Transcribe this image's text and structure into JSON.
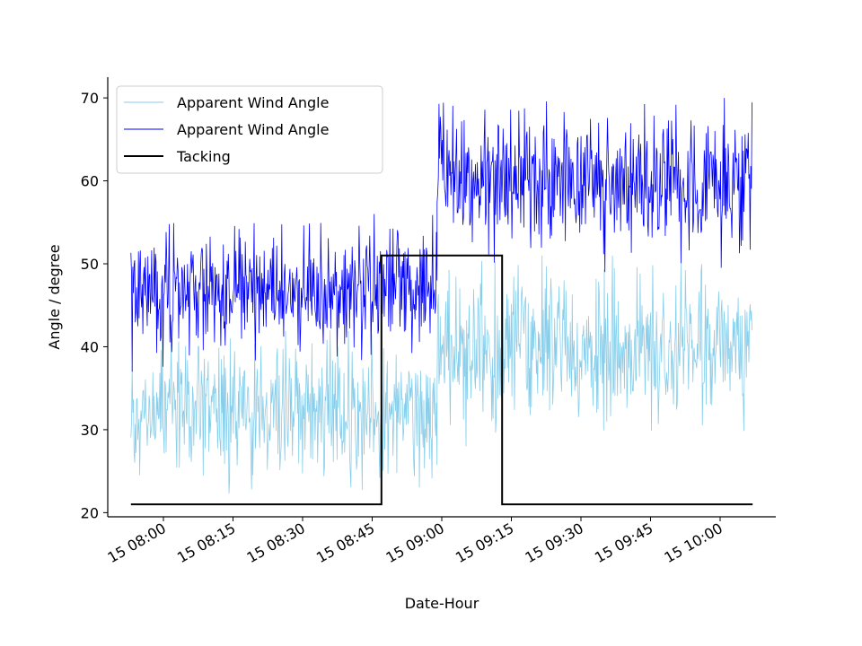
{
  "chart_data": {
    "type": "line",
    "title": "",
    "xlabel": "Date-Hour",
    "ylabel": "Angle / degree",
    "xlim": [
      "15 07:48",
      "10:12"
    ],
    "ylim": [
      19.5,
      72.5
    ],
    "x_ticks": [
      "15 08:00",
      "15 08:15",
      "15 08:30",
      "15 08:45",
      "15 09:00",
      "15 09:15",
      "15 09:30",
      "15 09:45",
      "15 10:00"
    ],
    "y_ticks": [
      20,
      30,
      40,
      50,
      60,
      70
    ],
    "grid": false,
    "legend": {
      "placement": "upper-left",
      "entries": [
        "Apparent Wind Angle",
        "Apparent Wind Angle",
        "Tacking"
      ]
    },
    "series": [
      {
        "name": "Apparent Wind Angle",
        "color": "#87ceeb",
        "style": "noisy",
        "segments": [
          {
            "x_start": "07:53",
            "x_end": "08:59",
            "mean": 32,
            "min": 21,
            "max": 42
          },
          {
            "x_start": "08:59",
            "x_end": "10:07",
            "mean": 40,
            "min": 28,
            "max": 51
          }
        ]
      },
      {
        "name": "Apparent Wind Angle",
        "color": "#0000ff",
        "style": "noisy",
        "segments": [
          {
            "x_start": "07:53",
            "x_end": "08:59",
            "mean": 47,
            "min": 37,
            "max": 56
          },
          {
            "x_start": "08:59",
            "x_end": "10:07",
            "mean": 60,
            "min": 49,
            "max": 70
          }
        ]
      },
      {
        "name": "Tacking",
        "color": "#000000",
        "style": "step",
        "points": [
          {
            "x": "07:53",
            "y": 21
          },
          {
            "x": "08:47",
            "y": 21
          },
          {
            "x": "08:47",
            "y": 51
          },
          {
            "x": "09:13",
            "y": 51
          },
          {
            "x": "09:13",
            "y": 21
          },
          {
            "x": "10:07",
            "y": 21
          }
        ]
      }
    ]
  }
}
